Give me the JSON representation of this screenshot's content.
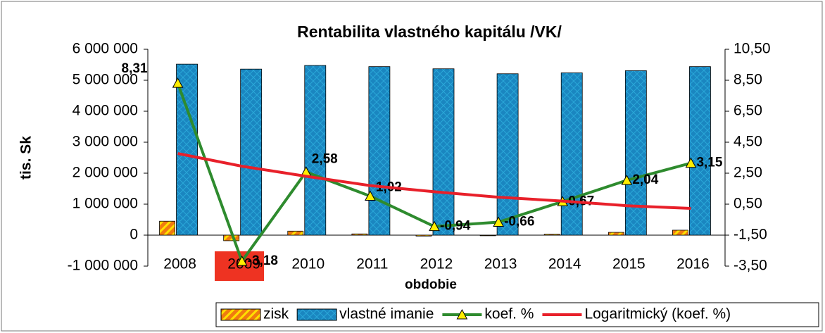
{
  "chart_data": {
    "type": "bar",
    "title": "Rentabilita vlastného kapitálu /VK/",
    "x_label": "obdobie",
    "y_label": "tis. Sk",
    "categories": [
      "2008",
      "2009",
      "2010",
      "2011",
      "2012",
      "2013",
      "2014",
      "2015",
      "2016"
    ],
    "series": [
      {
        "name": "zisk",
        "type": "bar",
        "color": "#f07a10",
        "values": [
          450000,
          -180000,
          130000,
          40000,
          -30000,
          -20000,
          30000,
          90000,
          160000
        ]
      },
      {
        "name": "vlastné imanie",
        "type": "bar",
        "color": "#1a86c0",
        "values": [
          5520000,
          5360000,
          5480000,
          5440000,
          5370000,
          5210000,
          5240000,
          5310000,
          5440000
        ]
      },
      {
        "name": "koef. %",
        "type": "line",
        "axis": "y2",
        "color": "#2e8b2e",
        "values": [
          8.31,
          -3.18,
          2.58,
          1.02,
          -0.94,
          -0.66,
          0.67,
          2.04,
          3.15
        ],
        "value_labels": [
          "8,31",
          "-3,18",
          "2,58",
          "1,02",
          "-0,94",
          "-0,66",
          "0,67",
          "2,04",
          "3,15"
        ]
      },
      {
        "name": "Logaritmický (koef. %)",
        "type": "line",
        "axis": "y2",
        "color": "#e8202a",
        "values": [
          3.77,
          2.95,
          2.3,
          1.7,
          1.3,
          0.95,
          0.7,
          0.4,
          0.23
        ]
      }
    ],
    "ylim": [
      -1000000,
      6000000
    ],
    "yticks": [
      {
        "value": -1000000,
        "label": "-1 000 000"
      },
      {
        "value": 0,
        "label": "0"
      },
      {
        "value": 1000000,
        "label": "1 000 000"
      },
      {
        "value": 2000000,
        "label": "2 000 000"
      },
      {
        "value": 3000000,
        "label": "3 000 000"
      },
      {
        "value": 4000000,
        "label": "4 000 000"
      },
      {
        "value": 5000000,
        "label": "5 000 000"
      },
      {
        "value": 6000000,
        "label": "6 000 000"
      }
    ],
    "y2lim": [
      -3.5,
      10.5
    ],
    "y2ticks": [
      {
        "value": -3.5,
        "label": "-3,50"
      },
      {
        "value": -1.5,
        "label": "-1,50"
      },
      {
        "value": 0.5,
        "label": "0,50"
      },
      {
        "value": 2.5,
        "label": "2,50"
      },
      {
        "value": 4.5,
        "label": "4,50"
      },
      {
        "value": 6.5,
        "label": "6,50"
      },
      {
        "value": 8.5,
        "label": "8,50"
      },
      {
        "value": 10.5,
        "label": "10,50"
      }
    ],
    "legend": "bottom-right"
  }
}
